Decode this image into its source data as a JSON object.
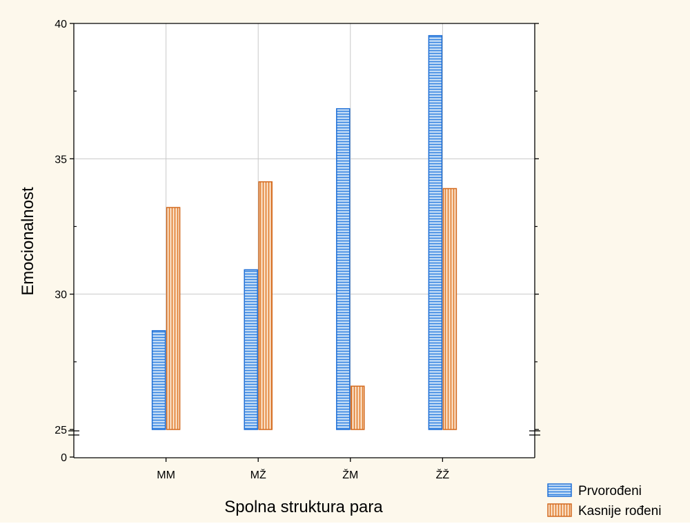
{
  "chart_data": {
    "type": "bar",
    "title": "",
    "xlabel": "Spolna struktura para",
    "ylabel": "Emocionalnost",
    "categories": [
      "MM",
      "MŽ",
      "ŽM",
      "ŽŽ"
    ],
    "series": [
      {
        "name": "Prvorođeni",
        "values": [
          28.65,
          30.9,
          36.85,
          39.55
        ],
        "color": "#1f6fd6",
        "fill": "#cfe3f7",
        "pattern": "horizontal-stripes"
      },
      {
        "name": "Kasnije rođeni",
        "values": [
          33.2,
          34.15,
          26.6,
          33.9
        ],
        "color": "#d2691e",
        "fill": "#fbe3cc",
        "pattern": "vertical-stripes"
      }
    ],
    "ylim": [
      25,
      40
    ],
    "yticks": [
      25,
      30,
      35,
      40
    ],
    "y_axis_break": true,
    "y_below_break_tick": 0,
    "grid": true,
    "legend_position": "bottom-right",
    "background_color": "#fdf8ec"
  }
}
